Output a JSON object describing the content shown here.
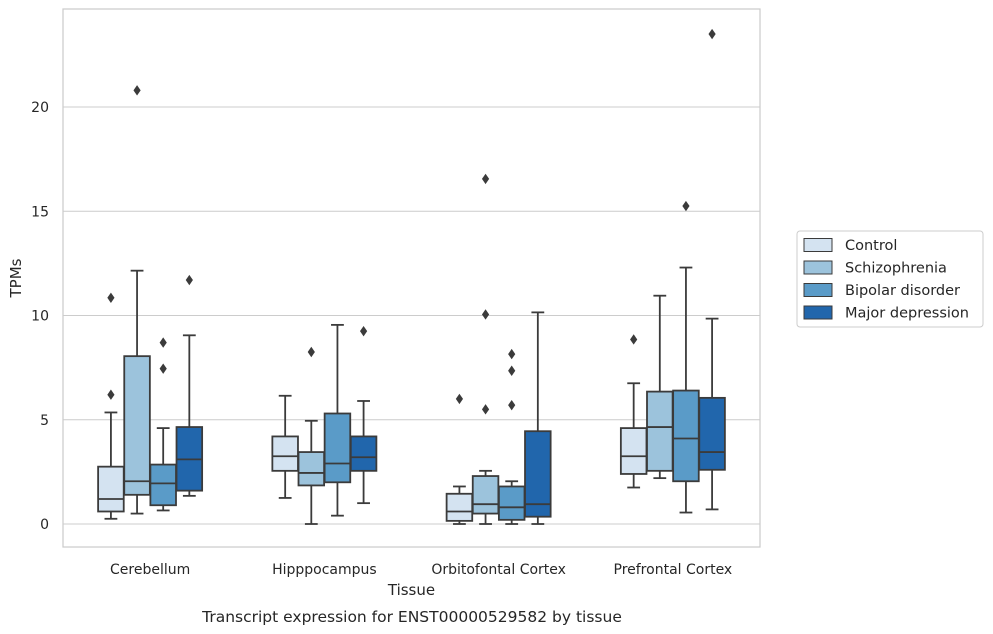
{
  "chart_data": {
    "type": "box",
    "caption": "Transcript expression for ENST00000529582 by tissue",
    "xlabel": "Tissue",
    "ylabel": "TPMs",
    "ylim": [
      -1.1,
      24.6
    ],
    "yticks": [
      0,
      5,
      10,
      15,
      20
    ],
    "grid": "horizontal",
    "legend_position": "right",
    "categories": [
      "Cerebellum",
      "Hipppocampus",
      "Orbitofontal Cortex",
      "Prefrontal Cortex"
    ],
    "series": [
      {
        "name": "Control",
        "color": "#d4e3f1",
        "boxes": [
          {
            "whislo": 0.25,
            "q1": 0.6,
            "med": 1.2,
            "q3": 2.75,
            "whishi": 5.35,
            "fliers": [
              6.2,
              10.85
            ]
          },
          {
            "whislo": 1.25,
            "q1": 2.55,
            "med": 3.25,
            "q3": 4.2,
            "whishi": 6.15,
            "fliers": []
          },
          {
            "whislo": 0.0,
            "q1": 0.15,
            "med": 0.6,
            "q3": 1.45,
            "whishi": 1.8,
            "fliers": [
              6.0
            ]
          },
          {
            "whislo": 1.75,
            "q1": 2.4,
            "med": 3.25,
            "q3": 4.6,
            "whishi": 6.75,
            "fliers": [
              8.85
            ]
          }
        ]
      },
      {
        "name": "Schizophrenia",
        "color": "#9cc3dc",
        "boxes": [
          {
            "whislo": 0.5,
            "q1": 1.4,
            "med": 2.05,
            "q3": 8.05,
            "whishi": 12.15,
            "fliers": [
              20.8
            ]
          },
          {
            "whislo": 0.0,
            "q1": 1.85,
            "med": 2.45,
            "q3": 3.45,
            "whishi": 4.95,
            "fliers": [
              8.25
            ]
          },
          {
            "whislo": 0.0,
            "q1": 0.5,
            "med": 0.95,
            "q3": 2.3,
            "whishi": 2.55,
            "fliers": [
              5.5,
              10.05,
              16.55
            ]
          },
          {
            "whislo": 2.2,
            "q1": 2.55,
            "med": 4.65,
            "q3": 6.35,
            "whishi": 10.95,
            "fliers": []
          }
        ]
      },
      {
        "name": "Bipolar disorder",
        "color": "#5a9bc8",
        "boxes": [
          {
            "whislo": 0.65,
            "q1": 0.9,
            "med": 1.95,
            "q3": 2.85,
            "whishi": 4.6,
            "fliers": [
              7.45,
              8.7
            ]
          },
          {
            "whislo": 0.4,
            "q1": 2.0,
            "med": 2.9,
            "q3": 5.3,
            "whishi": 9.55,
            "fliers": []
          },
          {
            "whislo": 0.0,
            "q1": 0.2,
            "med": 0.8,
            "q3": 1.8,
            "whishi": 2.05,
            "fliers": [
              5.7,
              7.35,
              8.15
            ]
          },
          {
            "whislo": 0.55,
            "q1": 2.05,
            "med": 4.1,
            "q3": 6.4,
            "whishi": 12.3,
            "fliers": [
              15.25
            ]
          }
        ]
      },
      {
        "name": "Major depression",
        "color": "#2166ac",
        "boxes": [
          {
            "whislo": 1.35,
            "q1": 1.6,
            "med": 3.1,
            "q3": 4.65,
            "whishi": 9.05,
            "fliers": [
              11.7
            ]
          },
          {
            "whislo": 1.0,
            "q1": 2.55,
            "med": 3.2,
            "q3": 4.2,
            "whishi": 5.9,
            "fliers": [
              9.25
            ]
          },
          {
            "whislo": 0.0,
            "q1": 0.35,
            "med": 0.95,
            "q3": 4.45,
            "whishi": 10.15,
            "fliers": []
          },
          {
            "whislo": 0.7,
            "q1": 2.6,
            "med": 3.45,
            "q3": 6.05,
            "whishi": 9.85,
            "fliers": [
              23.5
            ]
          }
        ]
      }
    ]
  }
}
